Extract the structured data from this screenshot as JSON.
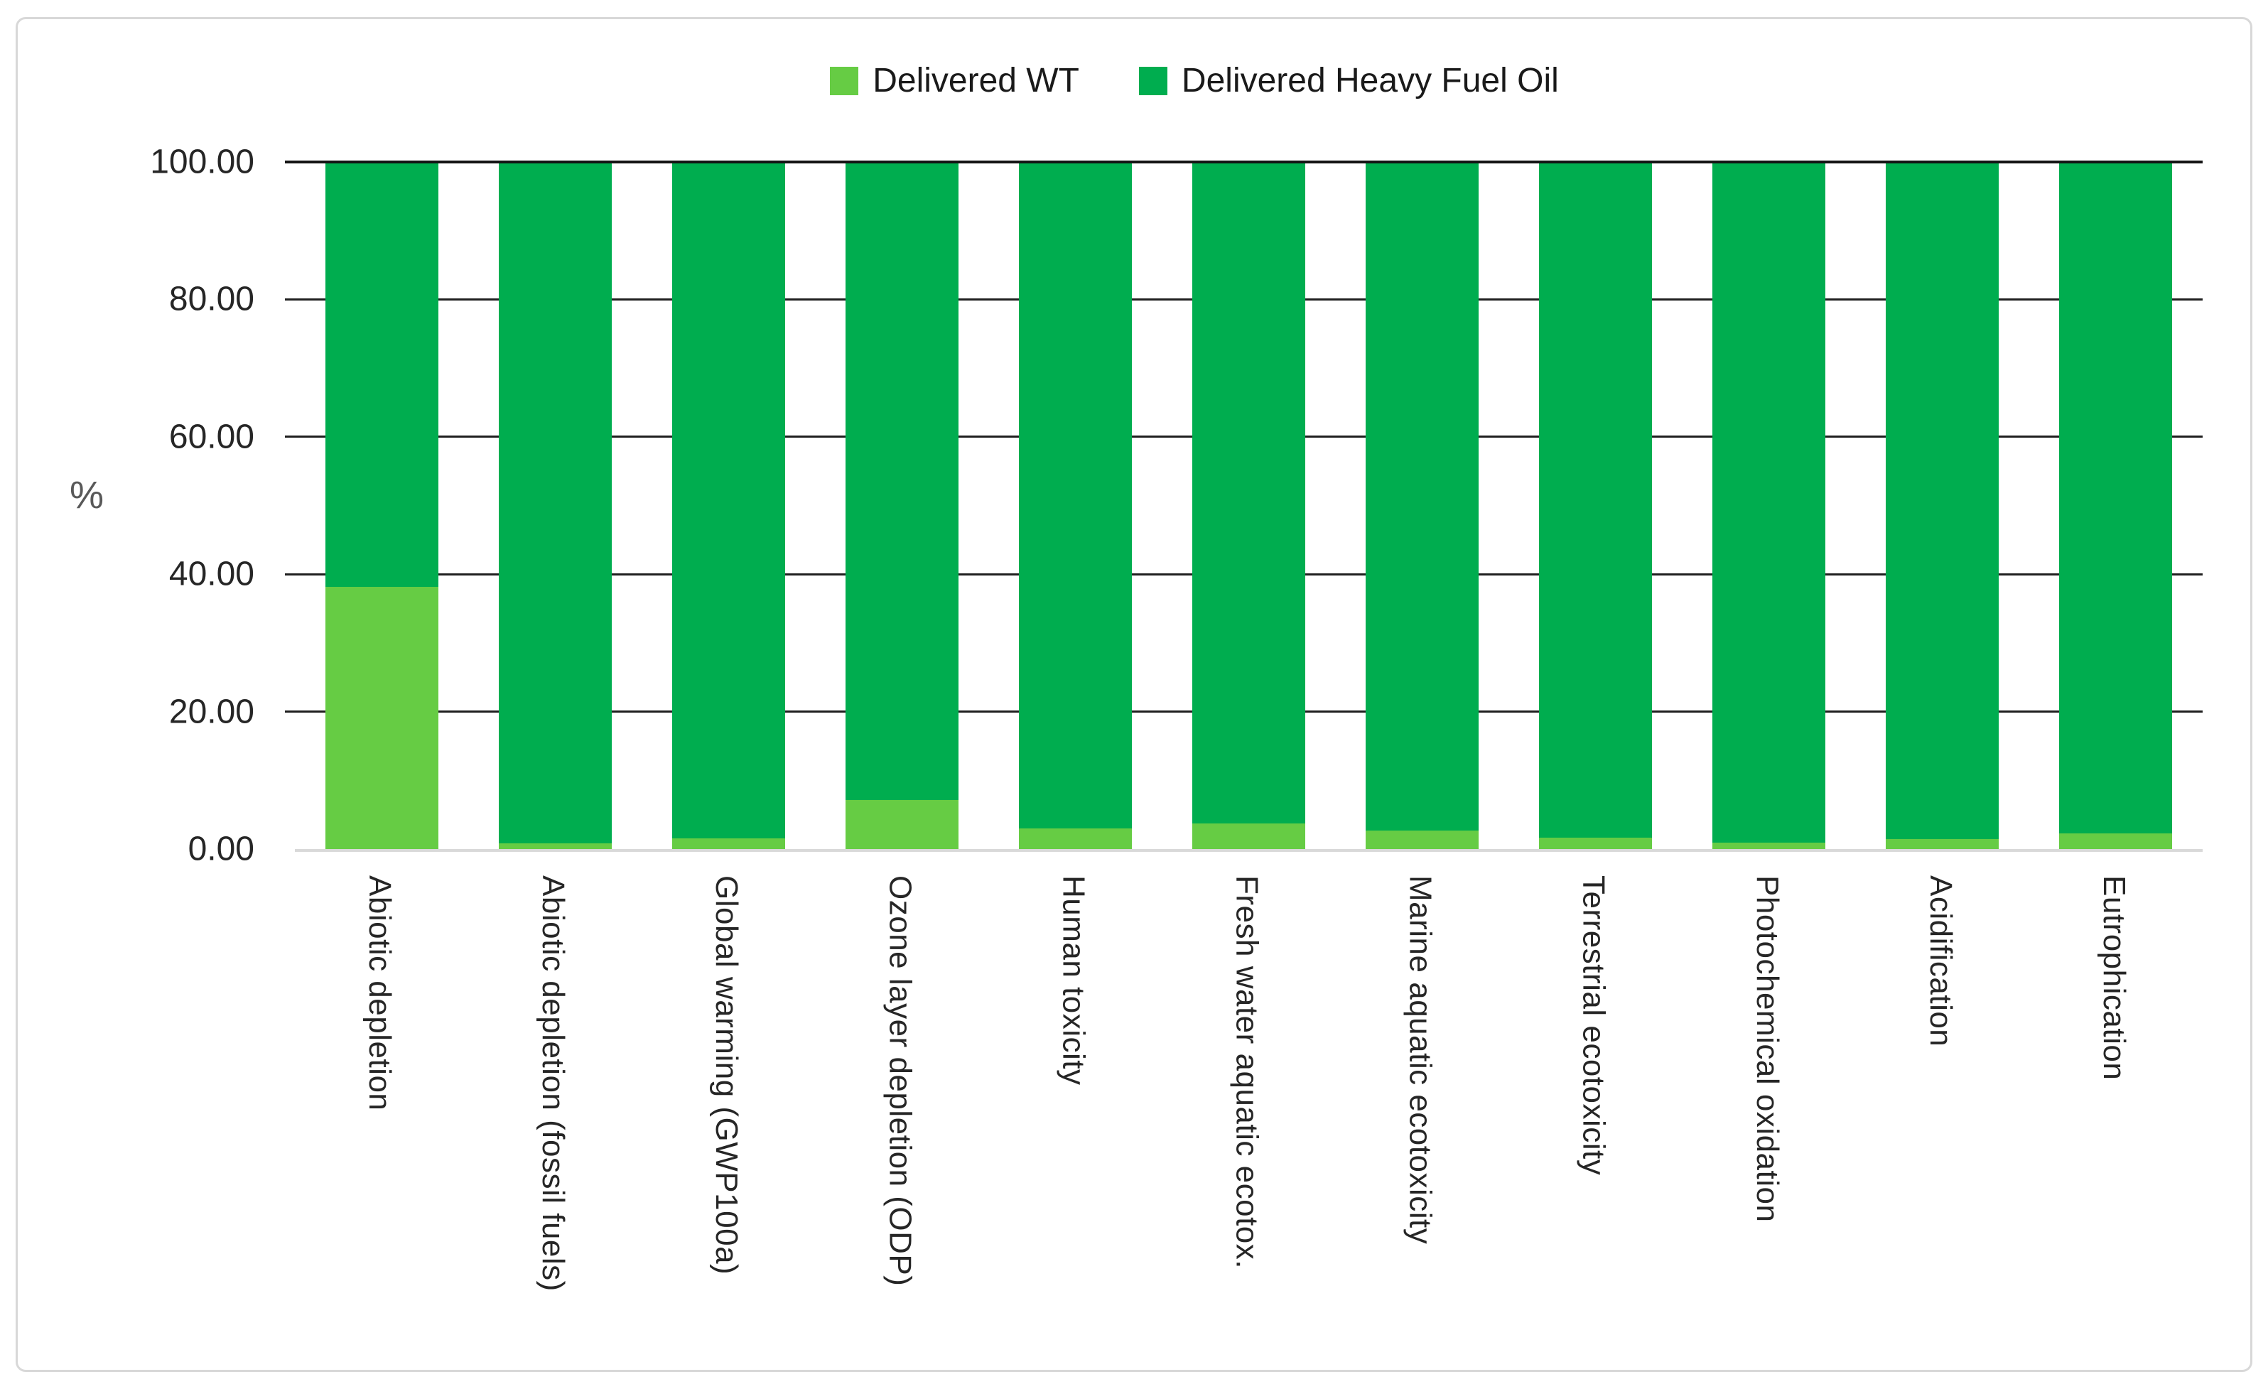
{
  "legend": {
    "items": [
      {
        "label": "Delivered WT",
        "color": "#66CC44"
      },
      {
        "label": "Delivered Heavy Fuel Oil",
        "color": "#00AD4F"
      }
    ]
  },
  "chart_data": {
    "type": "bar",
    "subtype": "stacked-100-percent",
    "title": "",
    "xlabel": "",
    "ylabel": "%",
    "ylim": [
      0,
      100
    ],
    "grid": "horizontal",
    "legend_position": "top-center",
    "yticks": [
      {
        "value": 0,
        "label": "0.00"
      },
      {
        "value": 20,
        "label": "20.00"
      },
      {
        "value": 40,
        "label": "40.00"
      },
      {
        "value": 60,
        "label": "60.00"
      },
      {
        "value": 80,
        "label": "80.00"
      },
      {
        "value": 100,
        "label": "100.00"
      }
    ],
    "categories": [
      "Abiotic depletion",
      "Abiotic depletion (fossil fuels)",
      "Global warming (GWP100a)",
      "Ozone layer depletion (ODP)",
      "Human toxicity",
      "Fresh water aquatic ecotox.",
      "Marine aquatic ecotoxicity",
      "Terrestrial ecotoxicity",
      "Photochemical oxidation",
      "Acidification",
      "Eutrophication"
    ],
    "series": [
      {
        "name": "Delivered WT",
        "color": "#66CC44",
        "values": [
          38.2,
          0.8,
          1.6,
          7.1,
          3.0,
          3.7,
          2.7,
          1.7,
          0.9,
          1.5,
          2.3
        ]
      },
      {
        "name": "Delivered Heavy Fuel Oil",
        "color": "#00AD4F",
        "values": [
          61.8,
          99.2,
          98.4,
          92.9,
          97.0,
          96.3,
          97.3,
          98.3,
          99.1,
          98.5,
          97.7
        ]
      }
    ]
  }
}
